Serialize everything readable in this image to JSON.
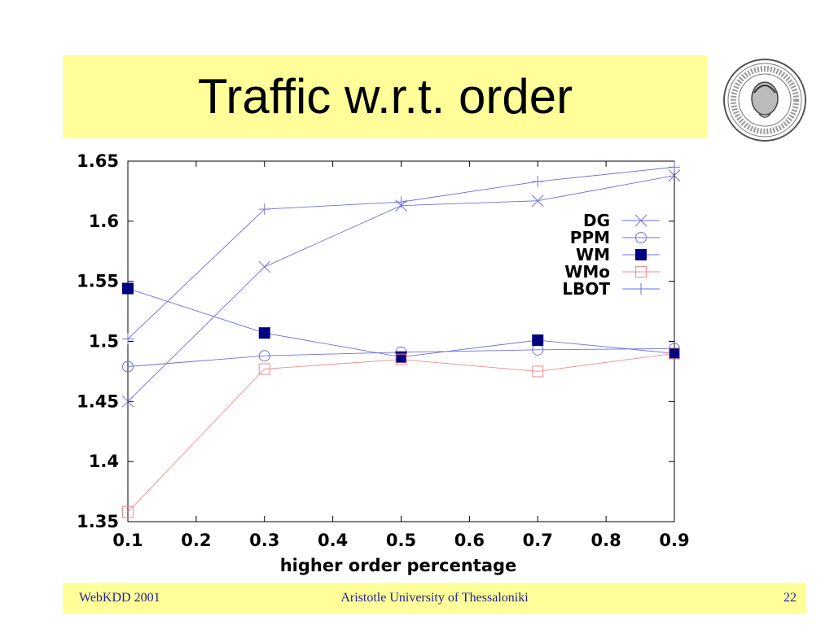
{
  "slide": {
    "title": "Traffic w.r.t. order",
    "footer_left": "WebKDD 2001",
    "footer_center": "Aristotle University of Thessaloniki",
    "footer_right": "22"
  },
  "colors": {
    "band": "#ffff99",
    "series_blue": "#6f6fe0",
    "series_red": "#f08a8a",
    "marker_navy": "#000080"
  },
  "chart_data": {
    "type": "line",
    "xlabel": "higher order percentage",
    "ylabel": "",
    "xlim": [
      0.1,
      0.9
    ],
    "ylim": [
      1.35,
      1.65
    ],
    "x": [
      0.1,
      0.3,
      0.5,
      0.7,
      0.9
    ],
    "xticks": [
      "0.1",
      "0.2",
      "0.3",
      "0.4",
      "0.5",
      "0.6",
      "0.7",
      "0.8",
      "0.9"
    ],
    "yticks": [
      "1.35",
      "1.4",
      "1.45",
      "1.5",
      "1.55",
      "1.6",
      "1.65"
    ],
    "legend_position": "top-right",
    "grid": false,
    "series": [
      {
        "name": "DG",
        "values": [
          1.45,
          1.562,
          1.613,
          1.617,
          1.638
        ],
        "color": "#6f6fe0",
        "marker": "x"
      },
      {
        "name": "PPM",
        "values": [
          1.479,
          1.488,
          1.491,
          1.493,
          1.494
        ],
        "color": "#6f6fe0",
        "marker": "circle"
      },
      {
        "name": "WM",
        "values": [
          1.544,
          1.507,
          1.487,
          1.501,
          1.49
        ],
        "color": "#6f6fe0",
        "marker": "filled-square"
      },
      {
        "name": "WMo",
        "values": [
          1.358,
          1.477,
          1.485,
          1.475,
          1.49
        ],
        "color": "#f08a8a",
        "marker": "open-square"
      },
      {
        "name": "LBOT",
        "values": [
          1.502,
          1.61,
          1.616,
          1.633,
          1.645
        ],
        "color": "#6f6fe0",
        "marker": "plus"
      }
    ]
  }
}
